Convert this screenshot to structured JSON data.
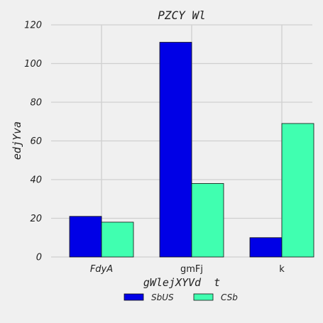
{
  "chart_data": {
    "type": "bar",
    "title": "PZCY Wl",
    "xlabel": "gWlejXYVd  t",
    "ylabel": "edjYva",
    "categories": [
      "FdyA",
      "gmFj",
      "k"
    ],
    "category_italic": [
      true,
      false,
      false
    ],
    "series": [
      {
        "name": "SbUS",
        "color": "#0000e6",
        "values": [
          21,
          111,
          10
        ]
      },
      {
        "name": "CSb",
        "color": "#40ffb0",
        "values": [
          18,
          38,
          69
        ]
      }
    ],
    "ylim": [
      0,
      120
    ],
    "yticks": [
      0,
      20,
      40,
      60,
      80,
      100,
      120
    ],
    "grid": true,
    "legend_position": "bottom-center"
  }
}
